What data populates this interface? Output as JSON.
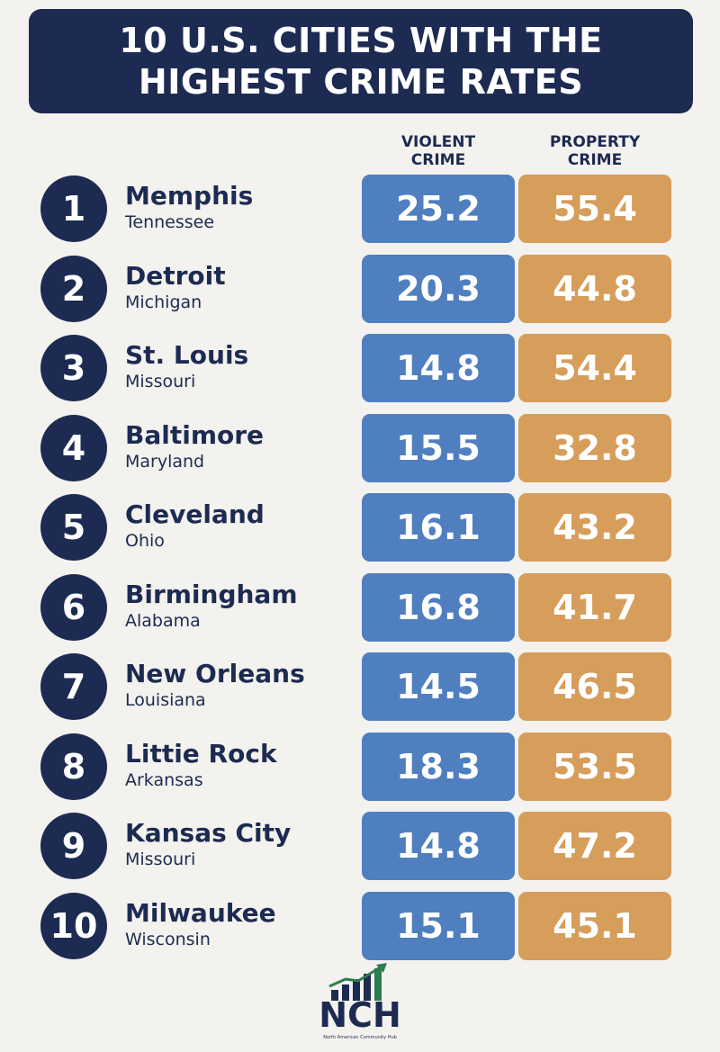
{
  "chart_data": {
    "type": "table",
    "title_lines": [
      "10 U.S. CITIES WITH THE",
      "HIGHEST CRIME RATES"
    ],
    "columns": [
      {
        "key": "violent",
        "label_lines": [
          "VIOLENT",
          "CRIME"
        ]
      },
      {
        "key": "property",
        "label_lines": [
          "PROPERTY",
          "CRIME"
        ]
      }
    ],
    "rows": [
      {
        "rank": "1",
        "city": "Memphis",
        "state": "Tennessee",
        "violent": "25.2",
        "property": "55.4"
      },
      {
        "rank": "2",
        "city": "Detroit",
        "state": "Michigan",
        "violent": "20.3",
        "property": "44.8"
      },
      {
        "rank": "3",
        "city": "St. Louis",
        "state": "Missouri",
        "violent": "14.8",
        "property": "54.4"
      },
      {
        "rank": "4",
        "city": "Baltimore",
        "state": "Maryland",
        "violent": "15.5",
        "property": "32.8"
      },
      {
        "rank": "5",
        "city": "Cleveland",
        "state": "Ohio",
        "violent": "16.1",
        "property": "43.2"
      },
      {
        "rank": "6",
        "city": "Birmingham",
        "state": "Alabama",
        "violent": "16.8",
        "property": "41.7"
      },
      {
        "rank": "7",
        "city": "New Orleans",
        "state": "Louisiana",
        "violent": "14.5",
        "property": "46.5"
      },
      {
        "rank": "8",
        "city": "Littie Rock",
        "state": "Arkansas",
        "violent": "18.3",
        "property": "53.5"
      },
      {
        "rank": "9",
        "city": "Kansas City",
        "state": "Missouri",
        "violent": "14.8",
        "property": "47.2"
      },
      {
        "rank": "10",
        "city": "Milwaukee",
        "state": "Wisconsin",
        "violent": "15.1",
        "property": "45.1"
      }
    ]
  },
  "logo": {
    "text": "NCH",
    "subtitle": "North American Community Hub",
    "icon": "rising-bars-arrow-icon"
  },
  "colors": {
    "navy": "#1d2b52",
    "violent": "#4f7fbf",
    "property": "#d69d5b",
    "background": "#f3f2ee"
  }
}
